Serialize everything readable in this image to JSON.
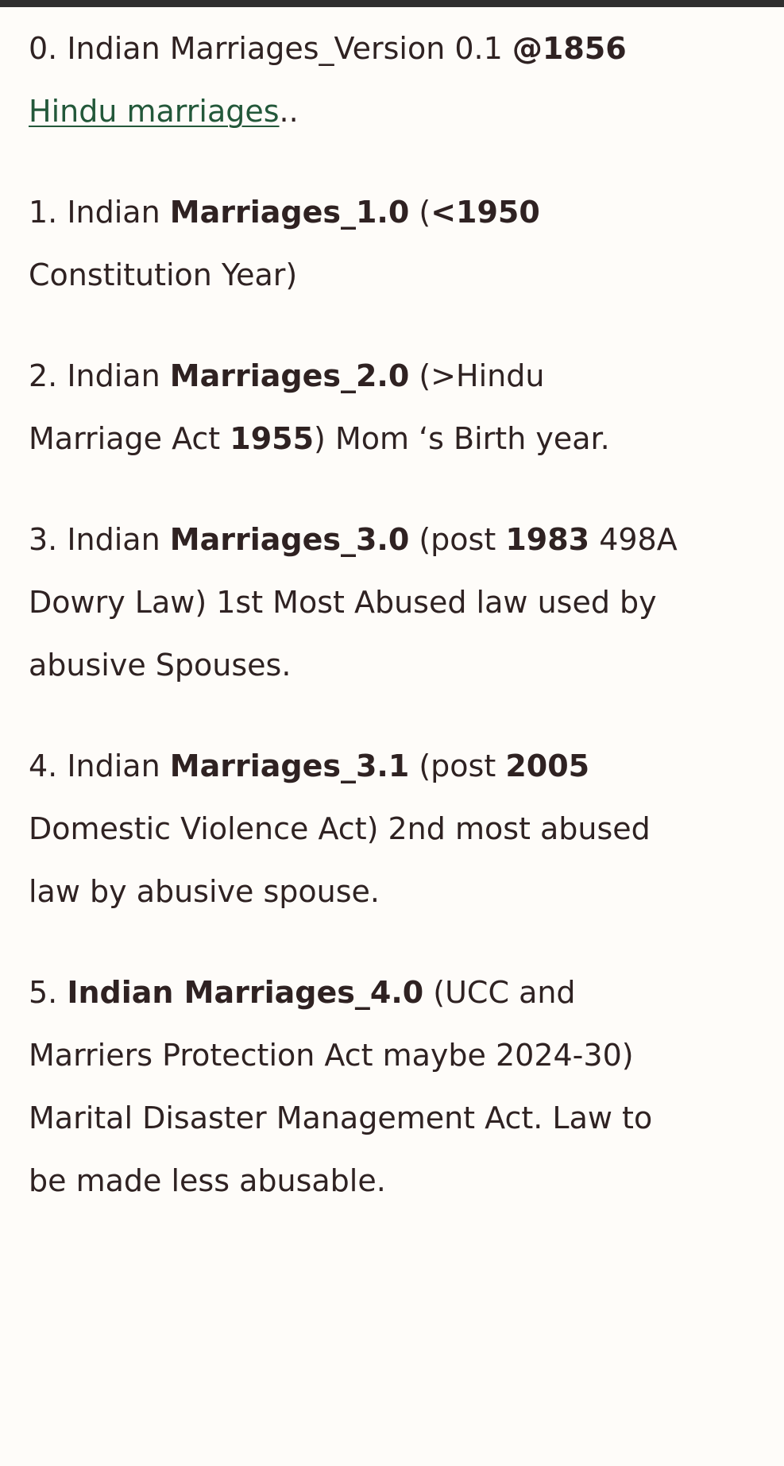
{
  "paragraphs": [
    {
      "runs": [
        {
          "text": "0. Indian Marriages_Version 0.1 "
        },
        {
          "text": "@1856 ",
          "bold": true
        },
        {
          "text": "Hindu marriages",
          "link": true
        },
        {
          "text": ".."
        }
      ]
    },
    {
      "runs": [
        {
          "text": "1. Indian "
        },
        {
          "text": "Marriages_1.0",
          "bold": true
        },
        {
          "text": " ("
        },
        {
          "text": "<1950",
          "bold": true
        },
        {
          "text": " Constitution Year)"
        }
      ]
    },
    {
      "runs": [
        {
          "text": "2. Indian "
        },
        {
          "text": "Marriages_2.0",
          "bold": true
        },
        {
          "text": " (>Hindu Marriage Act "
        },
        {
          "text": "1955",
          "bold": true
        },
        {
          "text": ") Mom ‘s Birth year."
        }
      ]
    },
    {
      "runs": [
        {
          "text": "3. Indian "
        },
        {
          "text": "Marriages_3.0",
          "bold": true
        },
        {
          "text": " (post "
        },
        {
          "text": "1983",
          "bold": true
        },
        {
          "text": " 498A Dowry Law) 1st Most Abused law used by abusive Spouses."
        }
      ]
    },
    {
      "runs": [
        {
          "text": "4. Indian "
        },
        {
          "text": "Marriages_3.1",
          "bold": true
        },
        {
          "text": " (post "
        },
        {
          "text": "2005",
          "bold": true
        },
        {
          "text": " Domestic Violence Act) 2nd most abused law by abusive spouse."
        }
      ]
    },
    {
      "runs": [
        {
          "text": "5. "
        },
        {
          "text": "Indian Marriages_4.0",
          "bold": true
        },
        {
          "text": " (UCC and Marriers Protection Act maybe 2024-30) Marital Disaster Management Act. Law to be made less abusable."
        }
      ]
    }
  ]
}
